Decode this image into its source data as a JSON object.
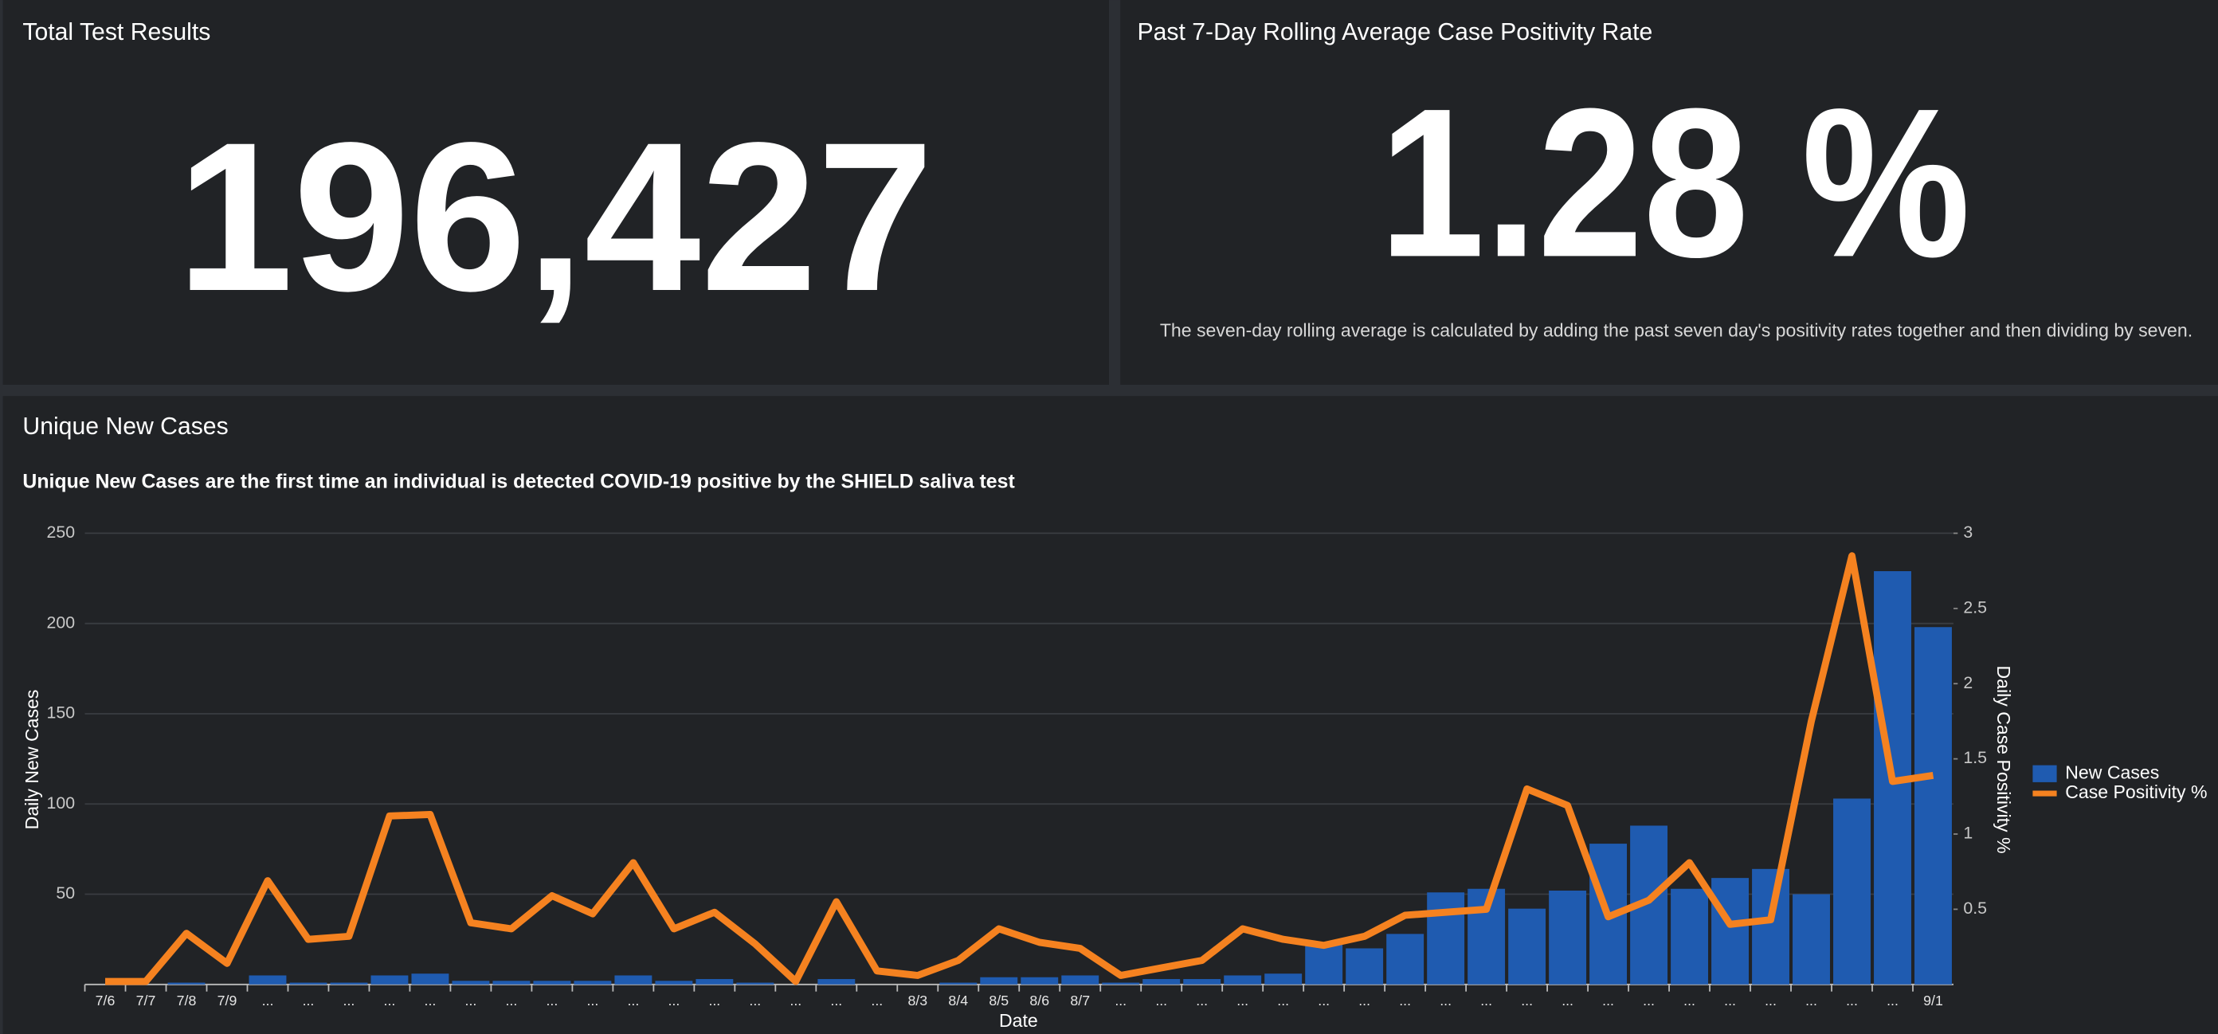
{
  "panels": [
    {
      "title": "Total Test Results",
      "value": "196,427"
    },
    {
      "title": "Past 7-Day Rolling Average Case Positivity Rate",
      "value": "1.28 %",
      "note": "The seven-day rolling average is calculated by adding the past seven day's positivity rates together and then dividing by seven."
    }
  ],
  "chart_data": {
    "type": "bar",
    "title": "Unique New Cases",
    "subtitle": "Unique New Cases are the first time an individual is detected COVID-19 positive by the SHIELD saliva test",
    "x_label": "Date",
    "y_label": "Daily New Cases",
    "y2_label": "Daily Case Positivity %",
    "categories": [
      "7/6",
      "7/7",
      "7/8",
      "7/9",
      "...",
      "...",
      "...",
      "...",
      "...",
      "...",
      "...",
      "...",
      "...",
      "...",
      "...",
      "...",
      "...",
      "...",
      "...",
      "...",
      "8/3",
      "8/4",
      "8/5",
      "8/6",
      "8/7",
      "...",
      "...",
      "...",
      "...",
      "...",
      "...",
      "...",
      "...",
      "...",
      "...",
      "...",
      "...",
      "...",
      "...",
      "...",
      "...",
      "...",
      "...",
      "...",
      "...",
      "9/1"
    ],
    "series": [
      {
        "name": "New Cases",
        "color": "#1f5bb0",
        "type": "bar",
        "values": [
          0,
          0,
          1,
          0,
          5,
          1,
          1,
          5,
          6,
          2,
          2,
          2,
          2,
          5,
          2,
          3,
          1,
          0,
          3,
          0,
          0,
          1,
          4,
          4,
          5,
          1,
          3,
          3,
          5,
          6,
          22,
          20,
          28,
          51,
          53,
          42,
          52,
          78,
          88,
          53,
          59,
          64,
          50,
          103,
          229,
          198
        ]
      },
      {
        "name": "Case Positivity %",
        "color": "#f58220",
        "type": "line",
        "axis": "y2",
        "values": [
          0.02,
          0.02,
          0.34,
          0.14,
          0.69,
          0.3,
          0.32,
          1.12,
          1.13,
          0.41,
          0.37,
          0.59,
          0.47,
          0.81,
          0.37,
          0.48,
          0.27,
          0.02,
          0.55,
          0.09,
          0.06,
          0.16,
          0.37,
          0.28,
          0.24,
          0.06,
          0.11,
          0.16,
          0.37,
          0.3,
          0.26,
          0.32,
          0.46,
          0.48,
          0.5,
          1.3,
          1.19,
          0.45,
          0.56,
          0.81,
          0.4,
          0.43,
          1.75,
          2.85,
          1.35,
          1.39
        ]
      }
    ],
    "ylim": [
      0,
      250
    ],
    "yticks": [
      50,
      100,
      150,
      200,
      250
    ],
    "y2lim": [
      0,
      3
    ],
    "y2ticks": [
      0.5,
      1,
      1.5,
      2,
      2.5,
      3
    ],
    "grid": true,
    "legend": "right"
  }
}
